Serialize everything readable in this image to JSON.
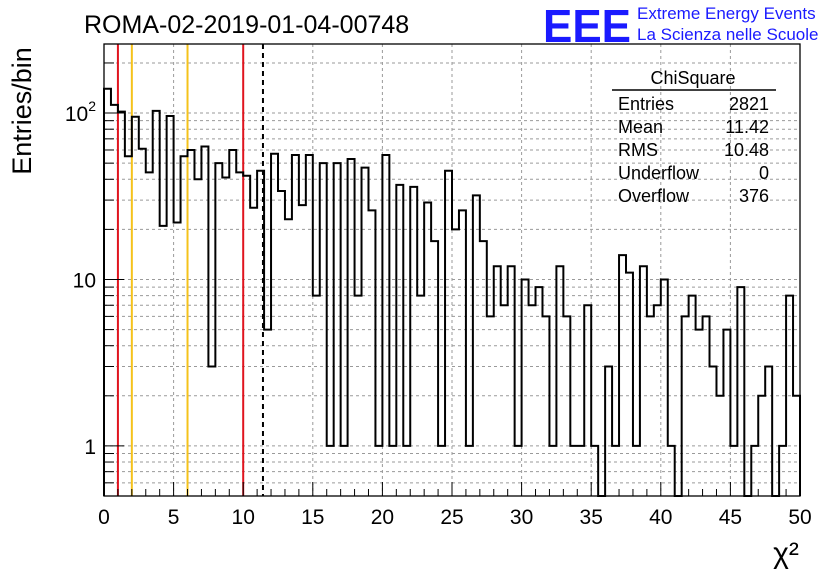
{
  "title": "ROMA-02-2019-01-04-00748",
  "brand": {
    "logo": "EEE",
    "line1": "Extreme Energy Events",
    "line2": "La Scienza nelle Scuole",
    "color": "#1a1aff"
  },
  "stats": {
    "name": "ChiSquare",
    "rows": [
      {
        "label": "Entries",
        "value": "2821"
      },
      {
        "label": "Mean",
        "value": "11.42"
      },
      {
        "label": "RMS",
        "value": "10.48"
      },
      {
        "label": "Underflow",
        "value": "0"
      },
      {
        "label": "Overflow",
        "value": "376"
      }
    ]
  },
  "chart_data": {
    "type": "histogram",
    "title": "ROMA-02-2019-01-04-00748",
    "xlabel": "χ²",
    "ylabel": "Entries/bin",
    "xlim": [
      0,
      50
    ],
    "ylim": [
      0.5,
      260
    ],
    "yscale": "log",
    "grid": true,
    "bin_width": 0.5,
    "x_ticks": [
      0,
      5,
      10,
      15,
      20,
      25,
      30,
      35,
      40,
      45,
      50
    ],
    "x_tick_labels": [
      "0",
      "5",
      "10",
      "15",
      "20",
      "25",
      "30",
      "35",
      "40",
      "45",
      "50"
    ],
    "y_tick_labels": [
      {
        "value": 1,
        "base": "1",
        "exp": ""
      },
      {
        "value": 10,
        "base": "10",
        "exp": ""
      },
      {
        "value": 100,
        "base": "10",
        "exp": "2"
      }
    ],
    "values": [
      140,
      112,
      102,
      55,
      95,
      61,
      44,
      103,
      21,
      96,
      22,
      55,
      60,
      40,
      63,
      3,
      50,
      41,
      60,
      44,
      42,
      27,
      45,
      5,
      57,
      34,
      23,
      56,
      28,
      56,
      8,
      50,
      1,
      50,
      1,
      53,
      8,
      47,
      26,
      1,
      56,
      1,
      37,
      1,
      36,
      8,
      29,
      17,
      1,
      45,
      20,
      26,
      1,
      32,
      17,
      6,
      12,
      7,
      12,
      1,
      10,
      7,
      9,
      6,
      1,
      12,
      6,
      1,
      1,
      7,
      1,
      0,
      3,
      1,
      14,
      11,
      1,
      12,
      6,
      7,
      10,
      1,
      0,
      6,
      8,
      5,
      6,
      3,
      2,
      5,
      1,
      9,
      0,
      1,
      2,
      3,
      0,
      1,
      8,
      2
    ],
    "vertical_lines": [
      {
        "x": 1,
        "color": "#e0141e",
        "style": "solid"
      },
      {
        "x": 2,
        "color": "#f5c21b",
        "style": "solid"
      },
      {
        "x": 6,
        "color": "#f5c21b",
        "style": "solid"
      },
      {
        "x": 10,
        "color": "#e0141e",
        "style": "solid"
      },
      {
        "x": 11.42,
        "color": "#000000",
        "style": "dashed"
      }
    ],
    "legend": "top-right"
  }
}
